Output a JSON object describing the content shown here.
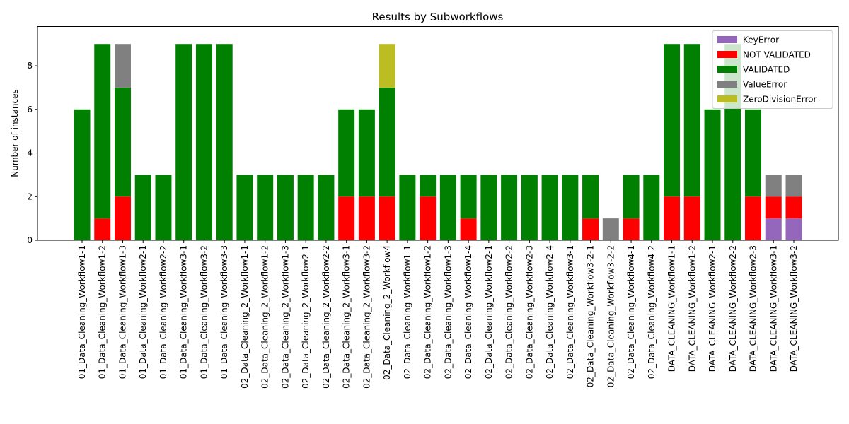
{
  "chart_data": {
    "type": "bar",
    "stacked": true,
    "title": "Results by Subworkflows",
    "xlabel": "",
    "ylabel": "Number of instances",
    "ylim": [
      0,
      9.8
    ],
    "yticks": [
      0,
      2,
      4,
      6,
      8
    ],
    "grid": false,
    "legend_position": "top-right",
    "categories": [
      "01_Data_Cleaning_Workflow1-1",
      "01_Data_Cleaning_Workflow1-2",
      "01_Data_Cleaning_Workflow1-3",
      "01_Data_Cleaning_Workflow2-1",
      "01_Data_Cleaning_Workflow2-2",
      "01_Data_Cleaning_Workflow3-1",
      "01_Data_Cleaning_Workflow3-2",
      "01_Data_Cleaning_Workflow3-3",
      "02_Data_Cleaning_2_Workflow1-1",
      "02_Data_Cleaning_2_Workflow1-2",
      "02_Data_Cleaning_2_Workflow1-3",
      "02_Data_Cleaning_2_Workflow2-1",
      "02_Data_Cleaning_2_Workflow2-2",
      "02_Data_Cleaning_2_Workflow3-1",
      "02_Data_Cleaning_2_Workflow3-2",
      "02_Data_Cleaning_2_Workflow4",
      "02_Data_Cleaning_Workflow1-1",
      "02_Data_Cleaning_Workflow1-2",
      "02_Data_Cleaning_Workflow1-3",
      "02_Data_Cleaning_Workflow1-4",
      "02_Data_Cleaning_Workflow2-1",
      "02_Data_Cleaning_Workflow2-2",
      "02_Data_Cleaning_Workflow2-3",
      "02_Data_Cleaning_Workflow2-4",
      "02_Data_Cleaning_Workflow3-1",
      "02_Data_Cleaning_Workflow3-2-1",
      "02_Data_Cleaning_Workflow3-2-2",
      "02_Data_Cleaning_Workflow4-1",
      "02_Data_Cleaning_Workflow4-2",
      "DATA_CLEANING_Workflow1-1",
      "DATA_CLEANING_Workflow1-2",
      "DATA_CLEANING_Workflow2-1",
      "DATA_CLEANING_Workflow2-2",
      "DATA_CLEANING_Workflow2-3",
      "DATA_CLEANING_Workflow3-1",
      "DATA_CLEANING_Workflow3-2"
    ],
    "series": [
      {
        "name": "KeyError",
        "color": "#9467bd",
        "values": [
          0,
          0,
          0,
          0,
          0,
          0,
          0,
          0,
          0,
          0,
          0,
          0,
          0,
          0,
          0,
          0,
          0,
          0,
          0,
          0,
          0,
          0,
          0,
          0,
          0,
          0,
          0,
          0,
          0,
          0,
          0,
          0,
          0,
          0,
          1,
          1
        ]
      },
      {
        "name": "NOT VALIDATED",
        "color": "#ff0000",
        "values": [
          0,
          1,
          2,
          0,
          0,
          0,
          0,
          0,
          0,
          0,
          0,
          0,
          0,
          2,
          2,
          2,
          0,
          2,
          0,
          1,
          0,
          0,
          0,
          0,
          0,
          1,
          0,
          1,
          0,
          2,
          2,
          0,
          0,
          2,
          1,
          1
        ]
      },
      {
        "name": "VALIDATED",
        "color": "#008000",
        "values": [
          6,
          8,
          5,
          3,
          3,
          9,
          9,
          9,
          3,
          3,
          3,
          3,
          3,
          4,
          4,
          5,
          3,
          1,
          3,
          2,
          3,
          3,
          3,
          3,
          3,
          2,
          0,
          2,
          3,
          7,
          7,
          6,
          9,
          4,
          0,
          0
        ]
      },
      {
        "name": "ValueError",
        "color": "#808080",
        "values": [
          0,
          0,
          2,
          0,
          0,
          0,
          0,
          0,
          0,
          0,
          0,
          0,
          0,
          0,
          0,
          0,
          0,
          0,
          0,
          0,
          0,
          0,
          0,
          0,
          0,
          0,
          1,
          0,
          0,
          0,
          0,
          0,
          0,
          0,
          1,
          1
        ]
      },
      {
        "name": "ZeroDivisionError",
        "color": "#bcbd22",
        "values": [
          0,
          0,
          0,
          0,
          0,
          0,
          0,
          0,
          0,
          0,
          0,
          0,
          0,
          0,
          0,
          2,
          0,
          0,
          0,
          0,
          0,
          0,
          0,
          0,
          0,
          0,
          0,
          0,
          0,
          0,
          0,
          0,
          0,
          0,
          0,
          0
        ]
      }
    ]
  }
}
